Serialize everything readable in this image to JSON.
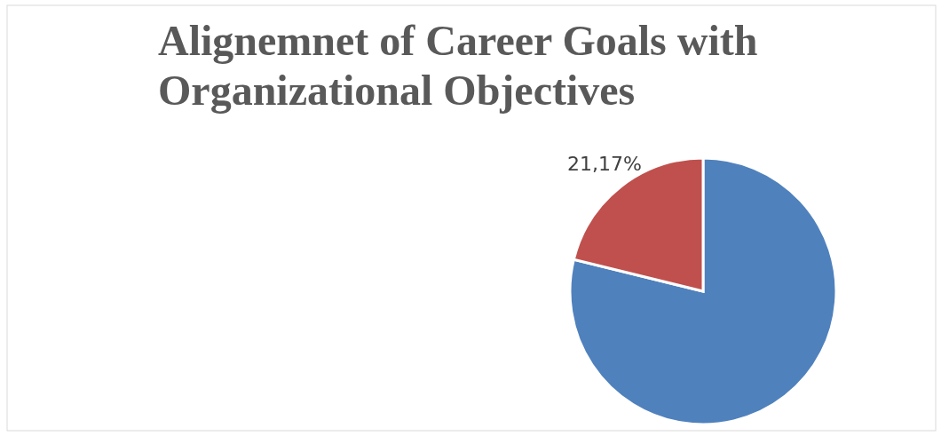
{
  "chart_data": {
    "type": "pie",
    "title": "Alignemnet of Career Goals with Organizational Objectives",
    "categories": [
      null,
      null
    ],
    "values": [
      78.83,
      21.17
    ],
    "colors": [
      "#4f81bd",
      "#c0504d"
    ],
    "value_labels": [
      null,
      "21,17%"
    ]
  }
}
